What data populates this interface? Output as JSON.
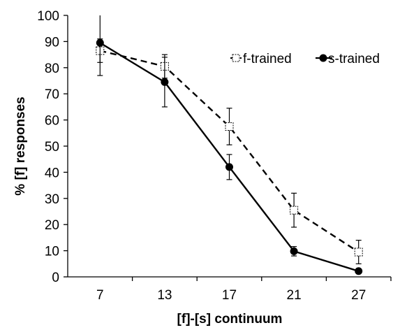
{
  "chart_data": {
    "type": "line",
    "categories": [
      "7",
      "13",
      "17",
      "21",
      "27"
    ],
    "xlabel": "[f]-[s] continuum",
    "ylabel": "% [f] responses",
    "ylim": [
      0,
      100
    ],
    "yticks": [
      0,
      10,
      20,
      30,
      40,
      50,
      60,
      70,
      80,
      90,
      100
    ],
    "grid": false,
    "legend_position": "top-right",
    "series": [
      {
        "name": "f-trained",
        "values": [
          86.5,
          80.5,
          57.5,
          25.5,
          9.5
        ],
        "error": [
          4.5,
          4.5,
          7.0,
          6.5,
          4.5
        ],
        "line_style": "dashed",
        "marker": "open-square",
        "color": "#000000"
      },
      {
        "name": "s-trained",
        "values": [
          89.5,
          74.5,
          42.0,
          9.8,
          2.2
        ],
        "error": [
          12.5,
          9.5,
          4.8,
          1.8,
          0.5
        ],
        "line_style": "solid",
        "marker": "filled-circle",
        "color": "#000000"
      }
    ]
  }
}
